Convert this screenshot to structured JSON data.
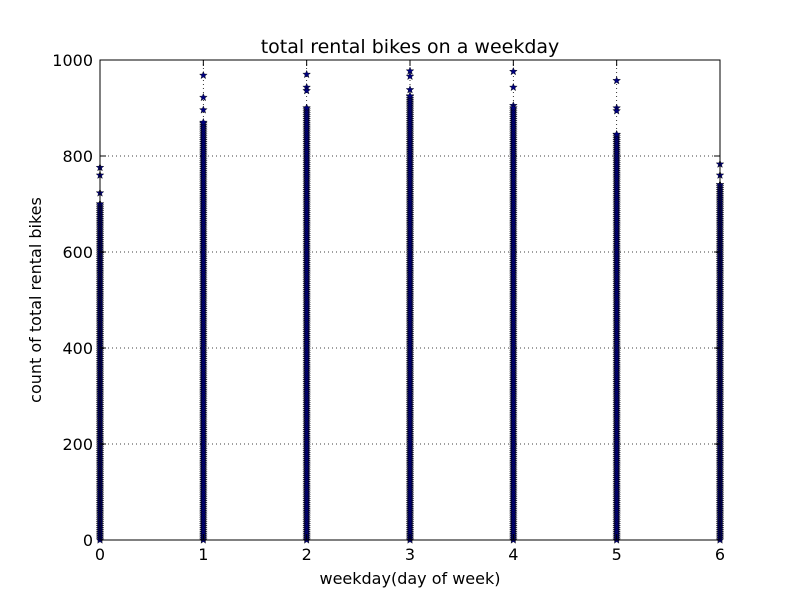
{
  "chart_data": {
    "type": "scatter",
    "title": "total rental bikes on a weekday",
    "xlabel": "weekday(day of week)",
    "ylabel": "count of total rental bikes",
    "xlim": [
      0,
      6
    ],
    "ylim": [
      0,
      1000
    ],
    "xticks": [
      0,
      1,
      2,
      3,
      4,
      5,
      6
    ],
    "yticks": [
      0,
      200,
      400,
      600,
      800,
      1000
    ],
    "grid": true,
    "marker": "star",
    "colors": {
      "marker_fill": "#000080",
      "grid": "#000000",
      "axes": "#000000"
    },
    "series": [
      {
        "columns": [
          {
            "x": 0,
            "max": 776,
            "highlights": [
              776,
              760,
              723,
              700
            ]
          },
          {
            "x": 1,
            "max": 968,
            "highlights": [
              968,
              922,
              896,
              870
            ]
          },
          {
            "x": 2,
            "max": 970,
            "highlights": [
              970,
              943,
              936,
              900
            ]
          },
          {
            "x": 3,
            "max": 977,
            "highlights": [
              977,
              966,
              938,
              925
            ]
          },
          {
            "x": 4,
            "max": 976,
            "highlights": [
              976,
              943,
              905,
              900
            ]
          },
          {
            "x": 5,
            "max": 957,
            "highlights": [
              957,
              900,
              894,
              845
            ]
          },
          {
            "x": 6,
            "max": 783,
            "highlights": [
              783,
              760,
              740
            ]
          }
        ]
      }
    ]
  }
}
